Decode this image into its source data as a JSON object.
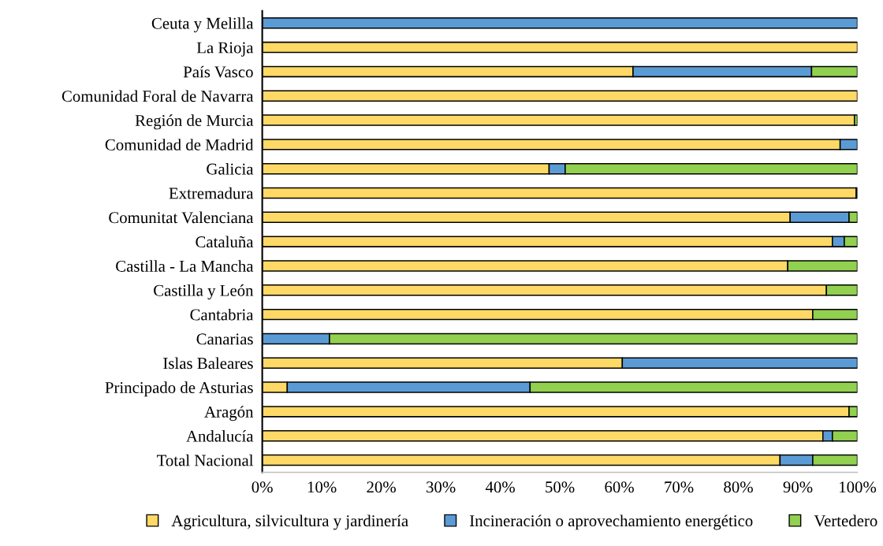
{
  "chart_data": {
    "type": "bar",
    "orientation": "horizontal",
    "stacked": true,
    "categories": [
      "Ceuta y Melilla",
      "La Rioja",
      "País Vasco",
      "Comunidad Foral de Navarra",
      "Región de Murcia",
      "Comunidad de Madrid",
      "Galicia",
      "Extremadura",
      "Comunitat Valenciana",
      "Cataluña",
      "Castilla - La Mancha",
      "Castilla y León",
      "Cantabria",
      "Canarias",
      "Islas Baleares",
      "Principado de Asturias",
      "Aragón",
      "Andalucía",
      "Total Nacional"
    ],
    "series": [
      {
        "name": "Agricultura, silvicultura y jardinería",
        "color": "#ffd966",
        "values": [
          null,
          100,
          62.3,
          100,
          99.5,
          97.1,
          48.2,
          99.8,
          88.7,
          95.8,
          88.3,
          94.8,
          92.5,
          null,
          60.5,
          4.2,
          98.6,
          94.2,
          87.0
        ]
      },
      {
        "name": "Incineración o aprovechamiento energético",
        "color": "#5b9bd5",
        "values": [
          100,
          null,
          30.0,
          null,
          null,
          2.9,
          2.7,
          null,
          9.9,
          2.0,
          null,
          null,
          null,
          11.3,
          39.5,
          40.8,
          null,
          1.6,
          5.5
        ]
      },
      {
        "name": "Vertedero",
        "color": "#92d050",
        "values": [
          null,
          null,
          7.7,
          null,
          0.5,
          null,
          49.1,
          0.2,
          1.4,
          2.2,
          11.7,
          5.2,
          7.5,
          88.7,
          null,
          55.0,
          1.4,
          4.2,
          7.5
        ]
      }
    ],
    "xlim": [
      0,
      100
    ],
    "xticks": [
      {
        "value": 0,
        "label": "0%"
      },
      {
        "value": 10,
        "label": "10%"
      },
      {
        "value": 20,
        "label": "20%"
      },
      {
        "value": 30,
        "label": "30%"
      },
      {
        "value": 40,
        "label": "40%"
      },
      {
        "value": 50,
        "label": "50%"
      },
      {
        "value": 60,
        "label": "60%"
      },
      {
        "value": 70,
        "label": "70%"
      },
      {
        "value": 80,
        "label": "80%"
      },
      {
        "value": 90,
        "label": "90%"
      },
      {
        "value": 100,
        "label": "100%"
      }
    ],
    "grid": false,
    "legend": "bottom"
  }
}
